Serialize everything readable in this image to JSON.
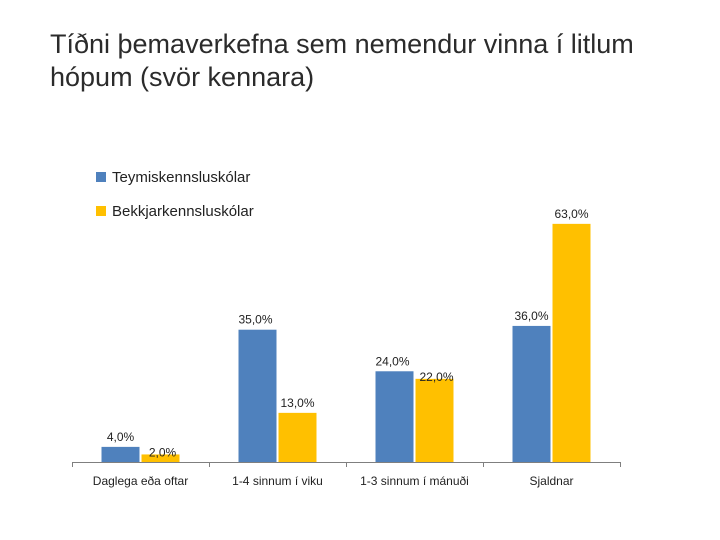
{
  "chart_data": {
    "type": "bar",
    "title": "Tíðni þemaverkefna sem nemendur vinna í litlum hópum (svör kennara)",
    "categories": [
      "Daglega eða oftar",
      "1-4 sinnum í viku",
      "1-3 sinnum í mánuði",
      "Sjaldnar"
    ],
    "series": [
      {
        "name": "Teymiskennsluskólar",
        "values": [
          4.0,
          35.0,
          24.0,
          36.0
        ],
        "labels": [
          "4,0%",
          "35,0%",
          "24,0%",
          "36,0%"
        ],
        "color": "#4F81BD"
      },
      {
        "name": "Bekkjarkennsluskólar",
        "values": [
          2.0,
          13.0,
          22.0,
          63.0
        ],
        "labels": [
          "2,0%",
          "13,0%",
          "22,0%",
          "63,0%"
        ],
        "color": "#FFC000"
      }
    ],
    "ylim": [
      0,
      70
    ],
    "grid": false,
    "legend": "top-left",
    "xlabel": "",
    "ylabel": ""
  }
}
